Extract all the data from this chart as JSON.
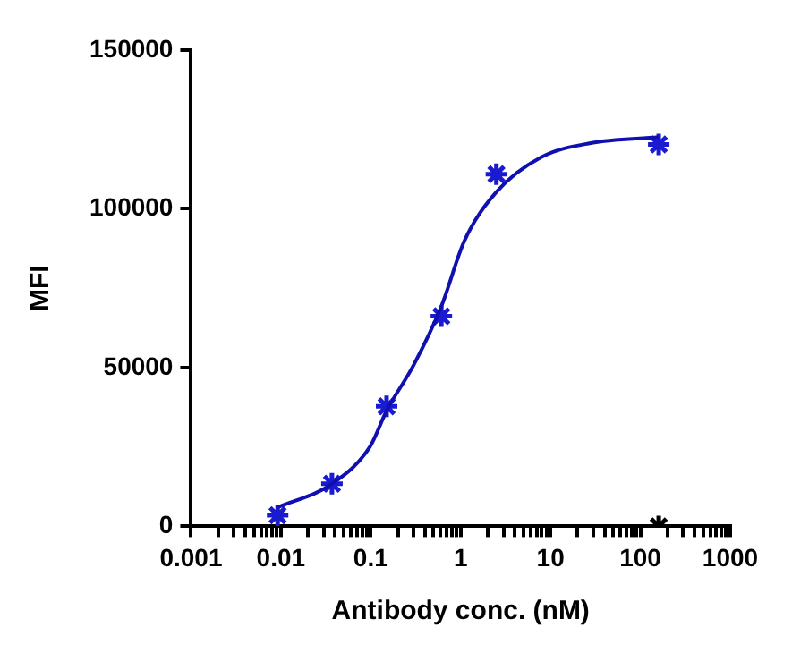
{
  "chart_data": {
    "type": "scatter",
    "xlabel": "Antibody conc. (nM)",
    "ylabel": "MFI",
    "log": "x",
    "grid": false,
    "legend": false,
    "xlim": [
      0.001,
      1000
    ],
    "ylim": [
      0,
      150000
    ],
    "xticks": [
      {
        "value": 0.001,
        "label": "0.001"
      },
      {
        "value": 0.002,
        "label": null
      },
      {
        "value": 0.003,
        "label": null
      },
      {
        "value": 0.004,
        "label": null
      },
      {
        "value": 0.005,
        "label": null
      },
      {
        "value": 0.006,
        "label": null
      },
      {
        "value": 0.007,
        "label": null
      },
      {
        "value": 0.008,
        "label": null
      },
      {
        "value": 0.009,
        "label": null
      },
      {
        "value": 0.01,
        "label": "0.01"
      },
      {
        "value": 0.02,
        "label": null
      },
      {
        "value": 0.03,
        "label": null
      },
      {
        "value": 0.04,
        "label": null
      },
      {
        "value": 0.05,
        "label": null
      },
      {
        "value": 0.06,
        "label": null
      },
      {
        "value": 0.07,
        "label": null
      },
      {
        "value": 0.08,
        "label": null
      },
      {
        "value": 0.09,
        "label": null
      },
      {
        "value": 0.1,
        "label": "0.1"
      },
      {
        "value": 0.2,
        "label": null
      },
      {
        "value": 0.3,
        "label": null
      },
      {
        "value": 0.4,
        "label": null
      },
      {
        "value": 0.5,
        "label": null
      },
      {
        "value": 0.6,
        "label": null
      },
      {
        "value": 0.7,
        "label": null
      },
      {
        "value": 0.8,
        "label": null
      },
      {
        "value": 0.9,
        "label": null
      },
      {
        "value": 1,
        "label": "1"
      },
      {
        "value": 2,
        "label": null
      },
      {
        "value": 3,
        "label": null
      },
      {
        "value": 4,
        "label": null
      },
      {
        "value": 5,
        "label": null
      },
      {
        "value": 6,
        "label": null
      },
      {
        "value": 7,
        "label": null
      },
      {
        "value": 8,
        "label": null
      },
      {
        "value": 9,
        "label": null
      },
      {
        "value": 10,
        "label": "10"
      },
      {
        "value": 20,
        "label": null
      },
      {
        "value": 30,
        "label": null
      },
      {
        "value": 40,
        "label": null
      },
      {
        "value": 50,
        "label": null
      },
      {
        "value": 60,
        "label": null
      },
      {
        "value": 70,
        "label": null
      },
      {
        "value": 80,
        "label": null
      },
      {
        "value": 90,
        "label": null
      },
      {
        "value": 100,
        "label": "100"
      },
      {
        "value": 200,
        "label": null
      },
      {
        "value": 300,
        "label": null
      },
      {
        "value": 400,
        "label": null
      },
      {
        "value": 500,
        "label": null
      },
      {
        "value": 600,
        "label": null
      },
      {
        "value": 700,
        "label": null
      },
      {
        "value": 800,
        "label": null
      },
      {
        "value": 900,
        "label": null
      },
      {
        "value": 1000,
        "label": "1000"
      }
    ],
    "yticks": [
      0,
      50000,
      100000,
      150000
    ],
    "series": [
      {
        "type": "line",
        "marker": "none",
        "line_style": "solid",
        "color": "#1010b0",
        "x": [
          0.0092,
          0.037,
          0.098,
          0.15,
          0.3,
          0.61,
          1.1,
          2.5,
          7.8,
          28,
          160
        ],
        "values": [
          6000,
          13400,
          25100,
          36400,
          50800,
          69300,
          89900,
          105300,
          116200,
          120700,
          122600
        ]
      },
      {
        "marker": "cross",
        "color": "#1a1ad0",
        "x": [
          0.0092,
          0.037,
          0.15,
          0.61,
          2.5,
          160
        ],
        "values": [
          3500,
          13400,
          37800,
          66200,
          110900,
          120300
        ]
      },
      {
        "marker": "cross",
        "color": "#000000",
        "x": [
          160
        ],
        "values": [
          0
        ]
      }
    ]
  }
}
